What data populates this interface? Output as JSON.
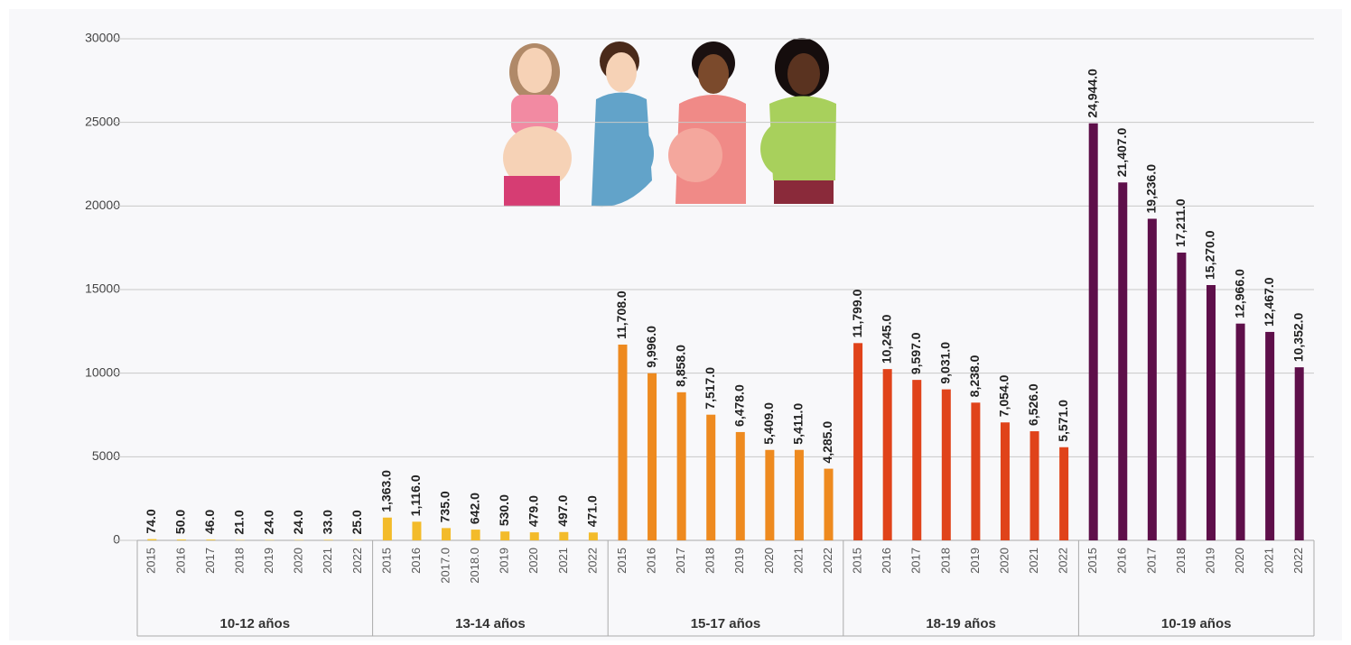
{
  "chart_data": {
    "type": "bar",
    "ylim": [
      0,
      30000
    ],
    "yticks": [
      0,
      5000,
      10000,
      15000,
      20000,
      25000,
      30000
    ],
    "grid": true,
    "groups": [
      {
        "name": "10-12 años",
        "color": "#f2c230",
        "categories": [
          "2015",
          "2016",
          "2017",
          "2018",
          "2019",
          "2020",
          "2021",
          "2022"
        ],
        "values": [
          74,
          50,
          46,
          21,
          24,
          24,
          33,
          25
        ],
        "value_labels": [
          "74.0",
          "50.0",
          "46.0",
          "21.0",
          "24.0",
          "24.0",
          "33.0",
          "25.0"
        ]
      },
      {
        "name": "13-14 años",
        "color": "#f3bb2a",
        "categories": [
          "2015",
          "2016",
          "2017.0",
          "2018.0",
          "2019",
          "2020",
          "2021",
          "2022"
        ],
        "values": [
          1363,
          1116,
          735,
          642,
          530,
          479,
          497,
          471
        ],
        "value_labels": [
          "1,363.0",
          "1,116.0",
          "735.0",
          "642.0",
          "530.0",
          "479.0",
          "497.0",
          "471.0"
        ]
      },
      {
        "name": "15-17 años",
        "color": "#ee8a1f",
        "categories": [
          "2015",
          "2016",
          "2017",
          "2018",
          "2019",
          "2020",
          "2021",
          "2022"
        ],
        "values": [
          11708,
          9996,
          8858,
          7517,
          6478,
          5409,
          5411,
          4285
        ],
        "value_labels": [
          "11,708.0",
          "9,996.0",
          "8,858.0",
          "7,517.0",
          "6,478.0",
          "5,409.0",
          "5,411.0",
          "4,285.0"
        ]
      },
      {
        "name": "18-19 años",
        "color": "#e0431a",
        "categories": [
          "2015",
          "2016",
          "2017",
          "2018",
          "2019",
          "2020",
          "2021",
          "2022"
        ],
        "values": [
          11799,
          10245,
          9597,
          9031,
          8238,
          7054,
          6526,
          5571
        ],
        "value_labels": [
          "11,799.0",
          "10,245.0",
          "9,597.0",
          "9,031.0",
          "8,238.0",
          "7,054.0",
          "6,526.0",
          "5,571.0"
        ]
      },
      {
        "name": "10-19 años",
        "color": "#5e0f4a",
        "categories": [
          "2015",
          "2016",
          "2017",
          "2018",
          "2019",
          "2020",
          "2021",
          "2022"
        ],
        "values": [
          24944,
          21407,
          19236,
          17211,
          15270,
          12966,
          12467,
          10352
        ],
        "value_labels": [
          "24,944.0",
          "21,407.0",
          "19,236.0",
          "17,211.0",
          "15,270.0",
          "12,966.0",
          "12,467.0",
          "10,352.0"
        ]
      }
    ]
  }
}
